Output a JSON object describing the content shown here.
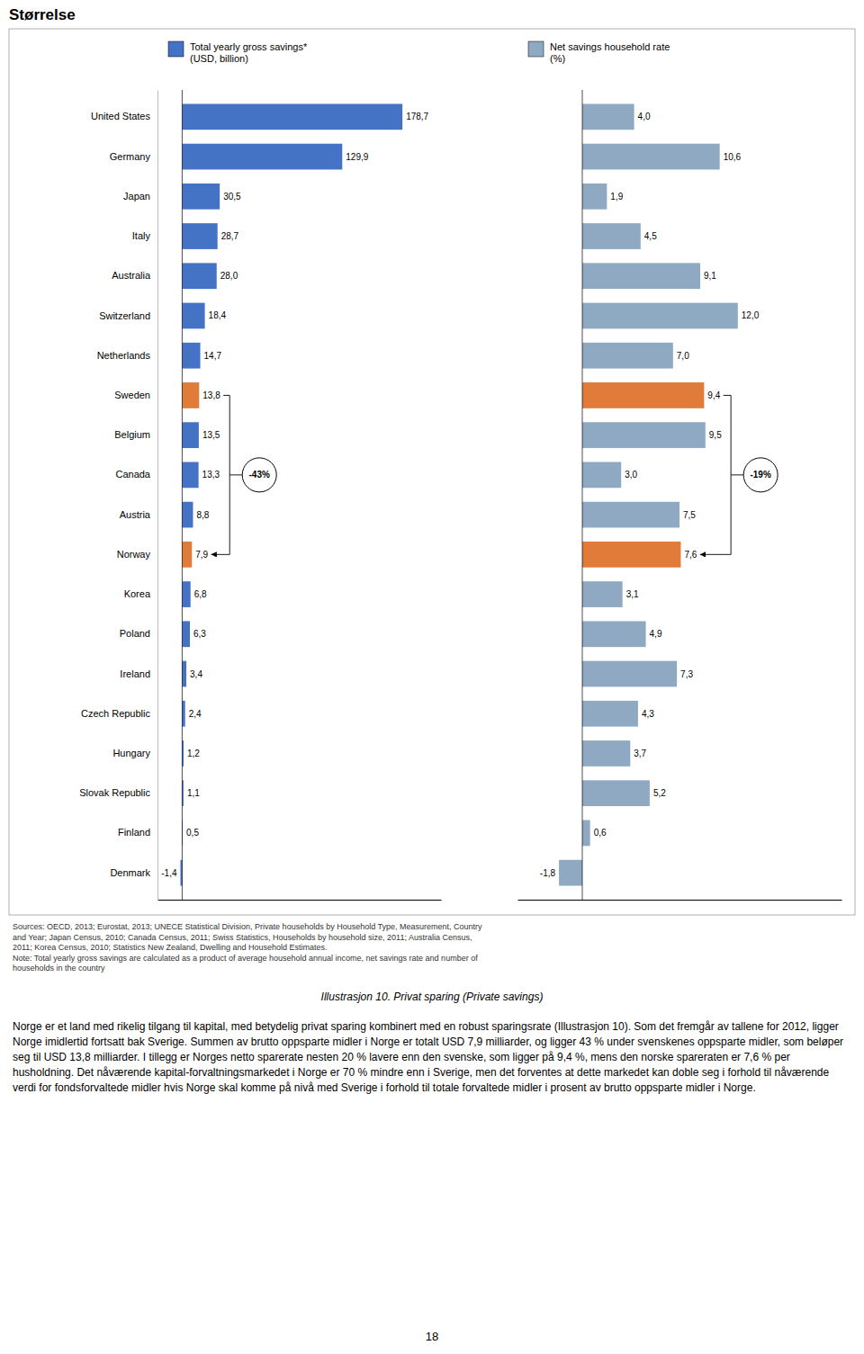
{
  "title": "Størrelse",
  "chart_data": [
    {
      "type": "bar",
      "orientation": "horizontal",
      "categories": [
        "United States",
        "Germany",
        "Japan",
        "Italy",
        "Australia",
        "Switzerland",
        "Netherlands",
        "Sweden",
        "Belgium",
        "Canada",
        "Austria",
        "Norway",
        "Korea",
        "Poland",
        "Ireland",
        "Czech Republic",
        "Hungary",
        "Slovak Republic",
        "Finland",
        "Denmark"
      ],
      "series": [
        {
          "name": "Total yearly gross savings*\n(USD, billion)",
          "color": "#4472C4",
          "colors": [
            "#4472C4",
            "#4472C4",
            "#4472C4",
            "#4472C4",
            "#4472C4",
            "#4472C4",
            "#4472C4",
            "#E07B39",
            "#4472C4",
            "#4472C4",
            "#4472C4",
            "#E07B39",
            "#4472C4",
            "#4472C4",
            "#4472C4",
            "#4472C4",
            "#4472C4",
            "#4472C4",
            "#4472C4",
            "#4472C4"
          ],
          "values": [
            178.7,
            129.9,
            30.5,
            28.7,
            28.0,
            18.4,
            14.7,
            13.8,
            13.5,
            13.3,
            8.8,
            7.9,
            6.8,
            6.3,
            3.4,
            2.4,
            1.2,
            1.1,
            0.5,
            -1.4
          ],
          "value_labels": [
            "178,7",
            "129,9",
            "30,5",
            "28,7",
            "28,0",
            "18,4",
            "14,7",
            "13,8",
            "13,5",
            "13,3",
            "8,8",
            "7,9",
            "6,8",
            "6,3",
            "3,4",
            "2,4",
            "1,2",
            "1,1",
            "0,5",
            "-1,4"
          ]
        }
      ],
      "xlim": [
        -20,
        210
      ],
      "annotations": [
        "-43%"
      ],
      "data_labels": true,
      "tick_labels": "y",
      "grid": false,
      "legend": "upper left"
    },
    {
      "type": "bar",
      "orientation": "horizontal",
      "categories": [
        "United States",
        "Germany",
        "Japan",
        "Italy",
        "Australia",
        "Switzerland",
        "Netherlands",
        "Sweden",
        "Belgium",
        "Canada",
        "Austria",
        "Norway",
        "Korea",
        "Poland",
        "Ireland",
        "Czech Republic",
        "Hungary",
        "Slovak Republic",
        "Finland",
        "Denmark"
      ],
      "series": [
        {
          "name": "Net savings household rate\n(%)",
          "color": "#8EA9C1",
          "colors": [
            "#8EA9C1",
            "#8EA9C1",
            "#8EA9C1",
            "#8EA9C1",
            "#8EA9C1",
            "#8EA9C1",
            "#8EA9C1",
            "#E07B39",
            "#8EA9C1",
            "#8EA9C1",
            "#8EA9C1",
            "#E07B39",
            "#8EA9C1",
            "#8EA9C1",
            "#8EA9C1",
            "#8EA9C1",
            "#8EA9C1",
            "#8EA9C1",
            "#8EA9C1",
            "#8EA9C1"
          ],
          "values": [
            4.0,
            10.6,
            1.9,
            4.5,
            9.1,
            12.0,
            7.0,
            9.4,
            9.5,
            3.0,
            7.5,
            7.6,
            3.1,
            4.9,
            7.3,
            4.3,
            3.7,
            5.2,
            0.6,
            -1.8
          ],
          "value_labels": [
            "4,0",
            "10,6",
            "1,9",
            "4,5",
            "9,1",
            "12,0",
            "7,0",
            "9,4",
            "9,5",
            "3,0",
            "7,5",
            "7,6",
            "3,1",
            "4,9",
            "7,3",
            "4,3",
            "3,7",
            "5,2",
            "0,6",
            "-1,8"
          ]
        }
      ],
      "xlim": [
        -5,
        20
      ],
      "annotations": [
        "-19%"
      ],
      "data_labels": true,
      "tick_labels": false,
      "grid": false,
      "legend": "upper left"
    }
  ],
  "sources": "Sources: OECD, 2013; Eurostat, 2013; UNECE Statistical Division, Private households by Household Type, Measurement, Country\nand Year; Japan Census, 2010; Canada Census, 2011; Swiss Statistics, Households by household size, 2011; Australia Census,\n2011; Korea Census, 2010; Statistics New Zealand, Dwelling and Household Estimates.\nNote: Total yearly gross savings are calculated as a product of average household annual income, net savings rate and number of\nhouseholds in the country",
  "caption": "Illustrasjon 10. Privat sparing (Private savings)",
  "body_text": "Norge er et land med rikelig tilgang til kapital, med betydelig privat sparing kombinert med en robust sparingsrate (Illustrasjon 10). Som det fremgår av tallene for 2012, ligger Norge imidlertid fortsatt bak Sverige. Summen av brutto oppsparte midler i Norge er totalt USD 7,9 milliarder, og ligger 43 % under svenskenes oppsparte midler, som beløper seg til USD 13,8 milliarder. I tillegg er Norges netto sparerate nesten 20 % lavere enn den svenske, som ligger på 9,4 %, mens den norske spareraten er 7,6 % per husholdning. Det nåværende kapital-forvaltningsmarkedet i Norge er 70 % mindre enn i Sverige, men det forventes at dette markedet kan doble seg i forhold til nåværende verdi for fondsforvaltede midler hvis Norge skal komme på nivå med Sverige i forhold til totale forvaltede midler i prosent av brutto oppsparte midler i Norge.",
  "page_number": 18
}
